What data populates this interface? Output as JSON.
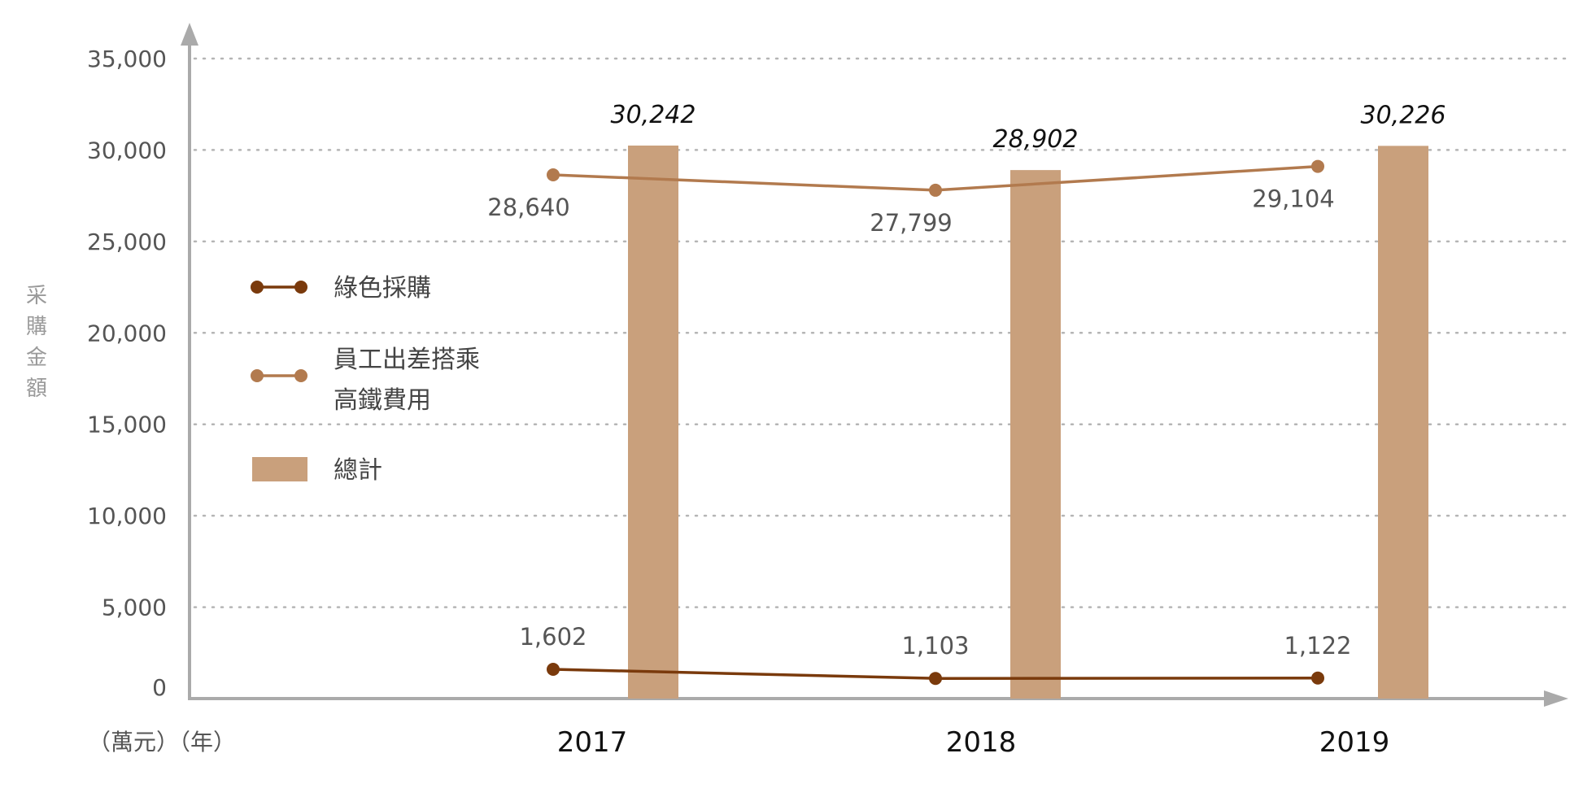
{
  "chart_data": {
    "type": "bar",
    "categories": [
      "2017",
      "2018",
      "2019"
    ],
    "ylabel": "采購金額",
    "unit_label": "（萬元）（年）",
    "ylim": [
      0,
      35000
    ],
    "yticks": [
      0,
      5000,
      10000,
      15000,
      20000,
      25000,
      30000,
      35000
    ],
    "ytick_labels": [
      "0",
      "5,000",
      "10,000",
      "15,000",
      "20,000",
      "25,000",
      "30,000",
      "35,000"
    ],
    "grid": true,
    "legend_position": "left",
    "series": [
      {
        "name": "綠色採購",
        "type": "line",
        "color": "#7a3a0c",
        "values": [
          1602,
          1103,
          1122
        ],
        "labels": [
          "1,602",
          "1,103",
          "1,122"
        ]
      },
      {
        "name": "員工出差搭乘高鐵費用",
        "name_lines": [
          "員工出差搭乘",
          "高鐵費用"
        ],
        "type": "line",
        "color": "#b27a4e",
        "values": [
          28640,
          27799,
          29104
        ],
        "labels": [
          "28,640",
          "27,799",
          "29,104"
        ]
      },
      {
        "name": "總計",
        "type": "bar",
        "color": "#c9a07c",
        "values": [
          30242,
          28902,
          30226
        ],
        "labels": [
          "30,242",
          "28,902",
          "30,226"
        ]
      }
    ]
  }
}
